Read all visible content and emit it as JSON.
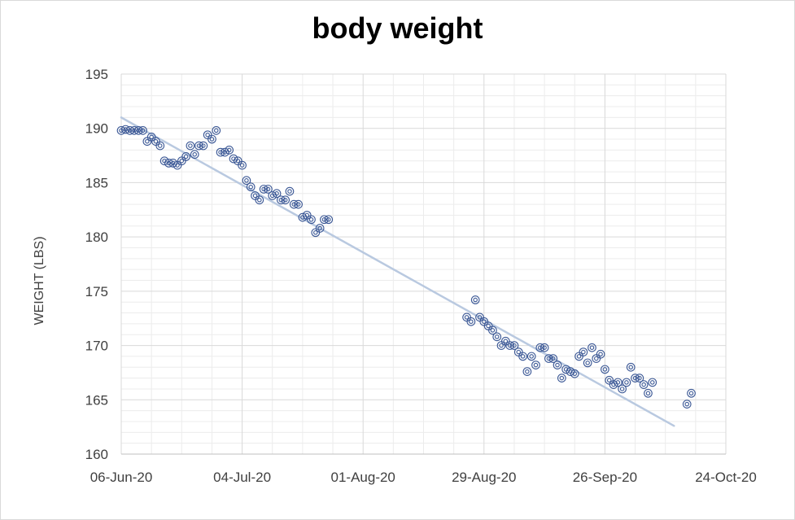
{
  "chart_data": {
    "type": "scatter",
    "title": "body weight",
    "xlabel": "",
    "ylabel": "WEIGHT (LBS)",
    "x_axis": {
      "type": "date",
      "min": "2020-06-06",
      "max": "2020-10-24",
      "tick_labels": [
        "06-Jun-20",
        "04-Jul-20",
        "01-Aug-20",
        "29-Aug-20",
        "26-Sep-20",
        "24-Oct-20"
      ]
    },
    "ylim": [
      160,
      195
    ],
    "y_ticks": [
      "160",
      "165",
      "170",
      "175",
      "180",
      "185",
      "190",
      "195"
    ],
    "grid": true,
    "legend": "none",
    "marker_color": "#3a5795",
    "trendline": {
      "type": "linear",
      "color": "#b9c9e0",
      "start": [
        "2020-06-06",
        191.0
      ],
      "end": [
        "2020-10-12",
        162.6
      ]
    },
    "series": [
      {
        "points": [
          [
            "2020-06-06",
            189.8
          ],
          [
            "2020-06-07",
            189.9
          ],
          [
            "2020-06-08",
            189.8
          ],
          [
            "2020-06-09",
            189.8
          ],
          [
            "2020-06-10",
            189.8
          ],
          [
            "2020-06-11",
            189.8
          ],
          [
            "2020-06-12",
            188.8
          ],
          [
            "2020-06-13",
            189.2
          ],
          [
            "2020-06-14",
            188.8
          ],
          [
            "2020-06-15",
            188.4
          ],
          [
            "2020-06-16",
            187.0
          ],
          [
            "2020-06-17",
            186.8
          ],
          [
            "2020-06-18",
            186.8
          ],
          [
            "2020-06-19",
            186.6
          ],
          [
            "2020-06-20",
            187.0
          ],
          [
            "2020-06-21",
            187.4
          ],
          [
            "2020-06-22",
            188.4
          ],
          [
            "2020-06-23",
            187.6
          ],
          [
            "2020-06-24",
            188.4
          ],
          [
            "2020-06-25",
            188.4
          ],
          [
            "2020-06-26",
            189.4
          ],
          [
            "2020-06-27",
            189.0
          ],
          [
            "2020-06-28",
            189.8
          ],
          [
            "2020-06-29",
            187.8
          ],
          [
            "2020-06-30",
            187.8
          ],
          [
            "2020-07-01",
            188.0
          ],
          [
            "2020-07-02",
            187.2
          ],
          [
            "2020-07-03",
            187.0
          ],
          [
            "2020-07-04",
            186.6
          ],
          [
            "2020-07-05",
            185.2
          ],
          [
            "2020-07-06",
            184.6
          ],
          [
            "2020-07-07",
            183.8
          ],
          [
            "2020-07-08",
            183.4
          ],
          [
            "2020-07-09",
            184.4
          ],
          [
            "2020-07-10",
            184.4
          ],
          [
            "2020-07-11",
            183.8
          ],
          [
            "2020-07-12",
            184.0
          ],
          [
            "2020-07-13",
            183.4
          ],
          [
            "2020-07-14",
            183.4
          ],
          [
            "2020-07-15",
            184.2
          ],
          [
            "2020-07-16",
            183.0
          ],
          [
            "2020-07-17",
            183.0
          ],
          [
            "2020-07-18",
            181.8
          ],
          [
            "2020-07-19",
            182.0
          ],
          [
            "2020-07-20",
            181.6
          ],
          [
            "2020-07-21",
            180.4
          ],
          [
            "2020-07-22",
            180.8
          ],
          [
            "2020-07-23",
            181.6
          ],
          [
            "2020-07-24",
            181.6
          ],
          [
            "2020-08-25",
            172.6
          ],
          [
            "2020-08-26",
            172.2
          ],
          [
            "2020-08-27",
            174.2
          ],
          [
            "2020-08-28",
            172.6
          ],
          [
            "2020-08-29",
            172.2
          ],
          [
            "2020-08-30",
            171.8
          ],
          [
            "2020-08-31",
            171.4
          ],
          [
            "2020-09-01",
            170.8
          ],
          [
            "2020-09-02",
            170.0
          ],
          [
            "2020-09-03",
            170.4
          ],
          [
            "2020-09-04",
            170.0
          ],
          [
            "2020-09-05",
            170.0
          ],
          [
            "2020-09-06",
            169.4
          ],
          [
            "2020-09-07",
            169.0
          ],
          [
            "2020-09-08",
            167.6
          ],
          [
            "2020-09-09",
            169.0
          ],
          [
            "2020-09-10",
            168.2
          ],
          [
            "2020-09-11",
            169.8
          ],
          [
            "2020-09-12",
            169.8
          ],
          [
            "2020-09-13",
            168.8
          ],
          [
            "2020-09-14",
            168.8
          ],
          [
            "2020-09-15",
            168.2
          ],
          [
            "2020-09-16",
            167.0
          ],
          [
            "2020-09-17",
            167.8
          ],
          [
            "2020-09-18",
            167.6
          ],
          [
            "2020-09-19",
            167.4
          ],
          [
            "2020-09-20",
            169.0
          ],
          [
            "2020-09-21",
            169.4
          ],
          [
            "2020-09-22",
            168.4
          ],
          [
            "2020-09-23",
            169.8
          ],
          [
            "2020-09-24",
            168.8
          ],
          [
            "2020-09-25",
            169.2
          ],
          [
            "2020-09-26",
            167.8
          ],
          [
            "2020-09-27",
            166.8
          ],
          [
            "2020-09-28",
            166.4
          ],
          [
            "2020-09-29",
            166.6
          ],
          [
            "2020-09-30",
            166.0
          ],
          [
            "2020-10-01",
            166.6
          ],
          [
            "2020-10-02",
            168.0
          ],
          [
            "2020-10-03",
            167.0
          ],
          [
            "2020-10-04",
            167.0
          ],
          [
            "2020-10-05",
            166.4
          ],
          [
            "2020-10-06",
            165.6
          ],
          [
            "2020-10-07",
            166.6
          ],
          [
            "2020-10-15",
            164.6
          ],
          [
            "2020-10-16",
            165.6
          ]
        ]
      }
    ]
  }
}
